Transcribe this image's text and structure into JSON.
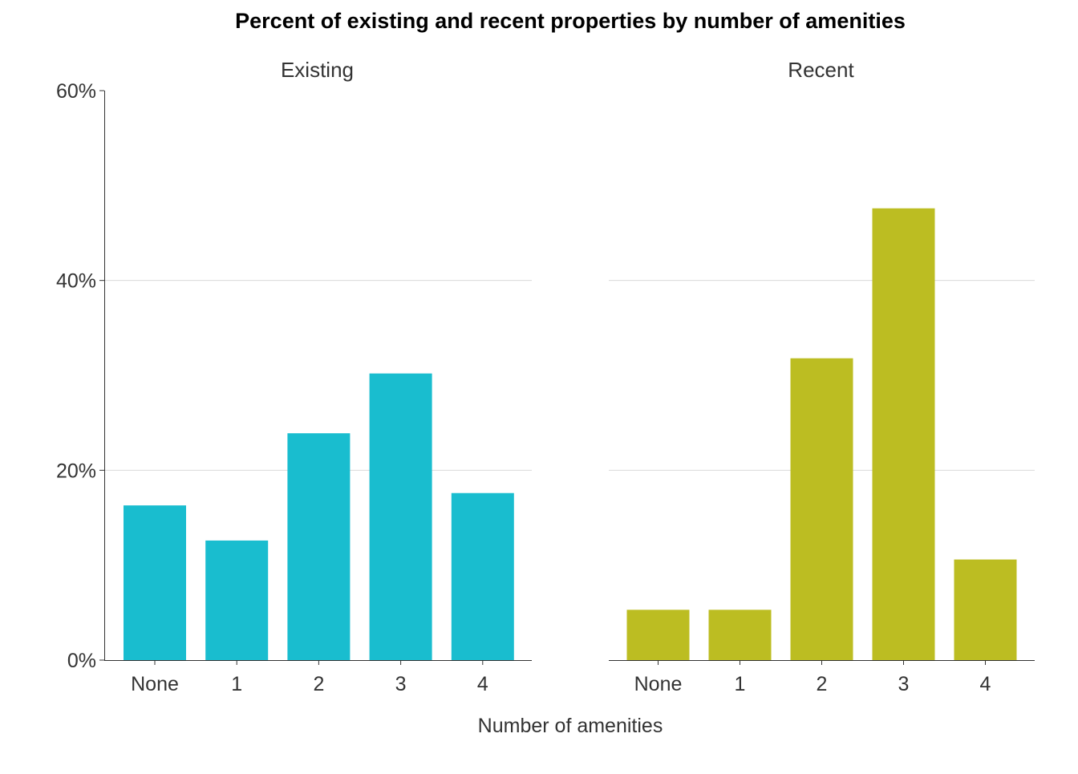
{
  "chart_data": {
    "type": "bar",
    "title": "Percent of existing and recent properties by number of amenities",
    "xlabel": "Number of amenities",
    "ylabel": "",
    "ylim": [
      0,
      60
    ],
    "yticks": [
      "0%",
      "20%",
      "40%",
      "60%"
    ],
    "categories": [
      "None",
      "1",
      "2",
      "3",
      "4"
    ],
    "grid": "horizontal",
    "panels": [
      {
        "name": "Existing",
        "color": "#19BDCF",
        "values": [
          16.3,
          12.6,
          23.9,
          30.2,
          17.6
        ]
      },
      {
        "name": "Recent",
        "color": "#BCBD22",
        "values": [
          5.3,
          5.3,
          31.8,
          47.6,
          10.6
        ]
      }
    ]
  }
}
